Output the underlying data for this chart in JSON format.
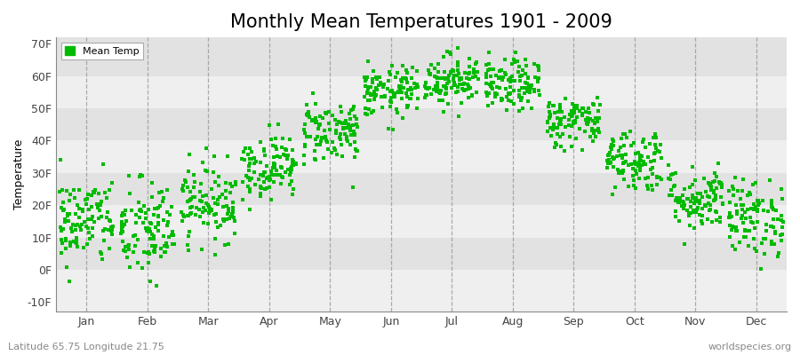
{
  "title": "Monthly Mean Temperatures 1901 - 2009",
  "ylabel": "Temperature",
  "xlabel_bottom_left": "Latitude 65.75 Longitude 21.75",
  "xlabel_bottom_right": "worldspecies.org",
  "legend_label": "Mean Temp",
  "dot_color": "#00bb00",
  "background_color": "#ffffff",
  "band_colors": [
    "#f5f5f5",
    "#e8e8e8"
  ],
  "ylim": [
    -13,
    72
  ],
  "yticks": [
    -10,
    0,
    10,
    20,
    30,
    40,
    50,
    60,
    70
  ],
  "ytick_labels": [
    "-10F",
    "0F",
    "10F",
    "20F",
    "30F",
    "40F",
    "50F",
    "60F",
    "70F"
  ],
  "months": [
    "Jan",
    "Feb",
    "Mar",
    "Apr",
    "May",
    "Jun",
    "Jul",
    "Aug",
    "Sep",
    "Oct",
    "Nov",
    "Dec"
  ],
  "mean_temps_F": [
    15,
    12,
    21,
    32,
    43,
    55,
    59,
    57,
    46,
    34,
    22,
    16
  ],
  "std_temps_F": [
    7,
    8,
    6,
    5,
    5,
    4,
    4,
    4,
    4,
    5,
    5,
    6
  ],
  "n_years": 109,
  "title_fontsize": 15,
  "axis_fontsize": 9,
  "tick_fontsize": 9,
  "dot_size": 5,
  "dot_marker": "s"
}
